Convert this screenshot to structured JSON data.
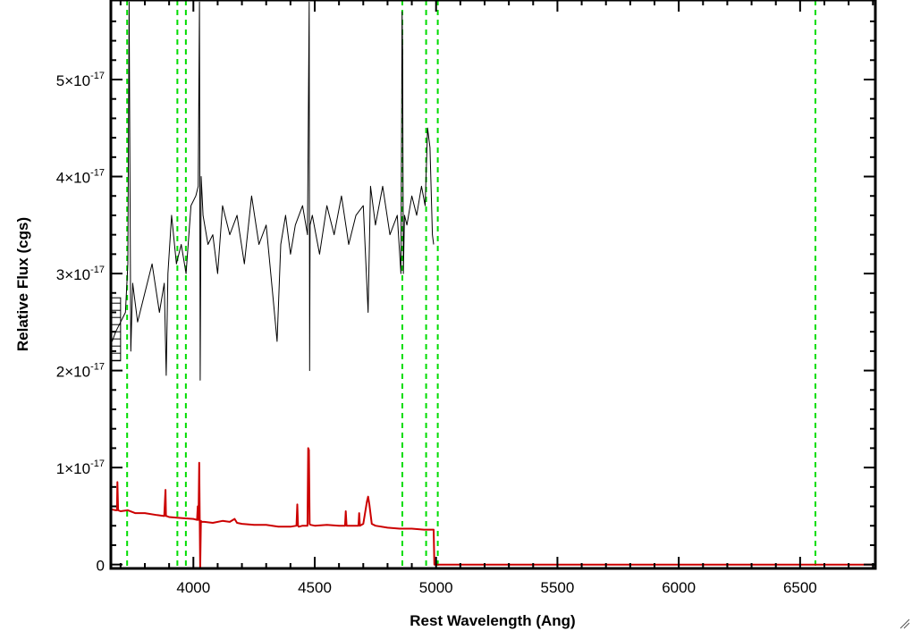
{
  "chart_data": {
    "type": "line",
    "title": "",
    "xlabel": "Rest Wavelength (Ang)",
    "ylabel": "Relative Flux (cgs)",
    "xlim": [
      3660,
      6810
    ],
    "ylim": [
      -4e-19,
      5.82e-17
    ],
    "x_ticks": [
      {
        "value": 4000,
        "label": "4000"
      },
      {
        "value": 4500,
        "label": "4500"
      },
      {
        "value": 5000,
        "label": "5000"
      },
      {
        "value": 5500,
        "label": "5500"
      },
      {
        "value": 6000,
        "label": "6000"
      },
      {
        "value": 6500,
        "label": "6500"
      }
    ],
    "y_ticks": [
      {
        "value": 0,
        "mantissa": "0",
        "exp": ""
      },
      {
        "value": 1e-17,
        "mantissa": "1×10",
        "exp": "-17"
      },
      {
        "value": 2e-17,
        "mantissa": "2×10",
        "exp": "-17"
      },
      {
        "value": 3e-17,
        "mantissa": "3×10",
        "exp": "-17"
      },
      {
        "value": 4e-17,
        "mantissa": "4×10",
        "exp": "-17"
      },
      {
        "value": 5e-17,
        "mantissa": "5×10",
        "exp": "-17"
      }
    ],
    "grid": false,
    "legend": "none",
    "series": [
      {
        "color": "#000000",
        "x": [
          3665,
          3680,
          3700,
          3720,
          3730,
          3735,
          3742,
          3750,
          3770,
          3800,
          3830,
          3860,
          3880,
          3888,
          3895,
          3910,
          3930,
          3950,
          3970,
          3990,
          4010,
          4020,
          4025,
          4028,
          4032,
          4040,
          4060,
          4080,
          4100,
          4120,
          4150,
          4180,
          4210,
          4240,
          4270,
          4300,
          4330,
          4345,
          4360,
          4380,
          4400,
          4420,
          4450,
          4470,
          4477,
          4479,
          4481,
          4490,
          4520,
          4550,
          4580,
          4610,
          4640,
          4670,
          4700,
          4720,
          4730,
          4750,
          4780,
          4810,
          4840,
          4855,
          4860,
          4862,
          4865,
          4870,
          4880,
          4900,
          4920,
          4940,
          4955,
          4965,
          4975,
          4985,
          4990
        ],
        "y": [
          2.3e-17,
          2.4e-17,
          2.5e-17,
          2.6e-17,
          3.1e-17,
          5.8e-17,
          2.2e-17,
          2.9e-17,
          2.5e-17,
          2.8e-17,
          3.1e-17,
          2.6e-17,
          2.9e-17,
          1.95e-17,
          3e-17,
          3.6e-17,
          3.1e-17,
          3.3e-17,
          3e-17,
          3.7e-17,
          3.8e-17,
          3.9e-17,
          5.8e-17,
          1.9e-17,
          4e-17,
          3.6e-17,
          3.3e-17,
          3.4e-17,
          3e-17,
          3.7e-17,
          3.4e-17,
          3.6e-17,
          3.1e-17,
          3.8e-17,
          3.3e-17,
          3.5e-17,
          2.7e-17,
          2.3e-17,
          3.3e-17,
          3.6e-17,
          3.2e-17,
          3.5e-17,
          3.7e-17,
          3.4e-17,
          5.8e-17,
          2e-17,
          3.5e-17,
          3.6e-17,
          3.2e-17,
          3.7e-17,
          3.4e-17,
          3.8e-17,
          3.3e-17,
          3.6e-17,
          3.7e-17,
          2.6e-17,
          3.9e-17,
          3.5e-17,
          3.9e-17,
          3.4e-17,
          3.6e-17,
          3e-17,
          5.7e-17,
          5.3e-17,
          3e-17,
          3.6e-17,
          3.5e-17,
          3.8e-17,
          3.6e-17,
          3.9e-17,
          3.7e-17,
          4.5e-17,
          4.3e-17,
          3.4e-17,
          3.3e-17
        ]
      },
      {
        "color": "#cc0000",
        "x": [
          3660,
          3680,
          3685,
          3687,
          3690,
          3700,
          3730,
          3760,
          3800,
          3850,
          3880,
          3885,
          3887,
          3890,
          3900,
          3950,
          4000,
          4015,
          4018,
          4021,
          4024,
          4028,
          4031,
          4034,
          4045,
          4080,
          4120,
          4150,
          4170,
          4180,
          4200,
          4250,
          4300,
          4350,
          4400,
          4425,
          4428,
          4431,
          4434,
          4450,
          4470,
          4473,
          4476,
          4479,
          4482,
          4500,
          4550,
          4600,
          4625,
          4628,
          4631,
          4650,
          4680,
          4683,
          4686,
          4700,
          4715,
          4720,
          4725,
          4735,
          4750,
          4800,
          4850,
          4900,
          4950,
          4985,
          4990,
          4993,
          5000,
          5500,
          6000,
          6500,
          6810
        ],
        "y": [
          5.7e-18,
          5.6e-18,
          5.6e-18,
          8.5e-18,
          5.6e-18,
          5.5e-18,
          5.6e-18,
          5.3e-18,
          5.3e-18,
          5.1e-18,
          5e-18,
          7.7e-18,
          5e-18,
          5e-18,
          4.9e-18,
          4.8e-18,
          4.7e-18,
          4.6e-18,
          6e-18,
          4.6e-18,
          1.05e-17,
          -4e-19,
          4.5e-18,
          4.4e-18,
          4.4e-18,
          4.3e-18,
          4.5e-18,
          4.4e-18,
          4.7e-18,
          4.3e-18,
          4.2e-18,
          4.1e-18,
          4.1e-18,
          3.9e-18,
          3.9e-18,
          4e-18,
          6.2e-18,
          4e-18,
          3.9e-18,
          4e-18,
          4e-18,
          1.2e-17,
          1.18e-17,
          4.2e-18,
          4.1e-18,
          4e-18,
          4.1e-18,
          4e-18,
          4e-18,
          5.5e-18,
          4e-18,
          4e-18,
          4e-18,
          5.3e-18,
          4e-18,
          4.2e-18,
          6.5e-18,
          7e-18,
          6.2e-18,
          4.2e-18,
          4e-18,
          3.8e-18,
          3.7e-18,
          3.7e-18,
          3.6e-18,
          3.6e-18,
          3.6e-18,
          0.0,
          0.0,
          0.0,
          0.0,
          0.0,
          0.0
        ]
      }
    ],
    "annotations": {
      "vertical_dashed_lines": {
        "color": "#00dd00",
        "x": [
          3727,
          3934,
          3969,
          4861,
          4959,
          5007,
          6563
        ]
      },
      "black_box_region": {
        "x": [
          3662,
          3700
        ],
        "y": [
          2.1e-17,
          2.75e-17
        ]
      }
    }
  }
}
